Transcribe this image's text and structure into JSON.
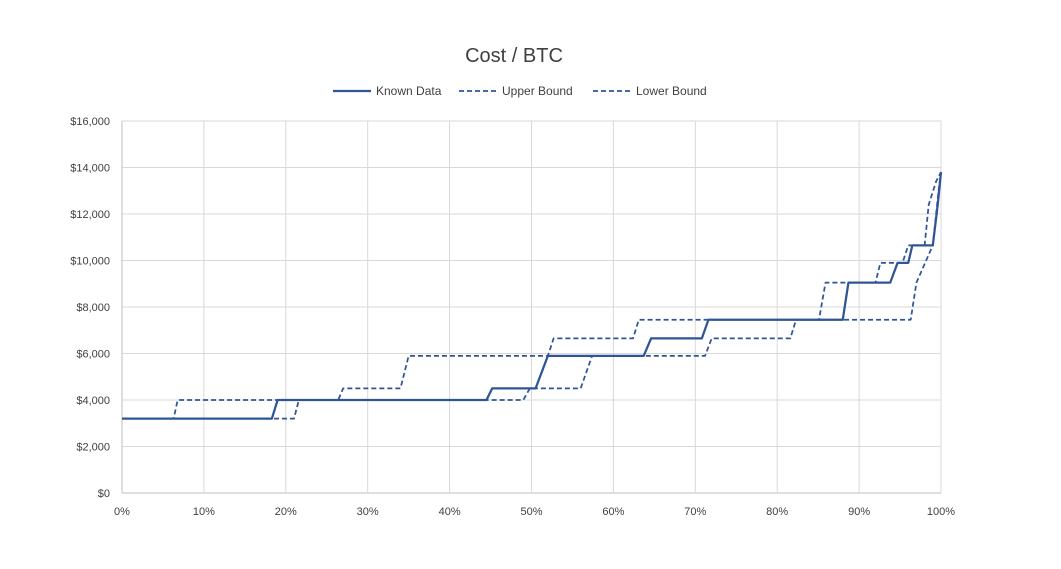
{
  "chart_data": {
    "type": "line",
    "title": "Cost / BTC",
    "xlabel": "",
    "ylabel": "",
    "xlim": [
      0,
      100
    ],
    "ylim": [
      0,
      16000
    ],
    "x_ticks": [
      "0%",
      "10%",
      "20%",
      "30%",
      "40%",
      "50%",
      "60%",
      "70%",
      "80%",
      "90%",
      "100%"
    ],
    "y_ticks": [
      "$0",
      "$2,000",
      "$4,000",
      "$6,000",
      "$8,000",
      "$10,000",
      "$12,000",
      "$14,000",
      "$16,000"
    ],
    "grid": true,
    "legend": "top",
    "colors": {
      "series": "#2f5597"
    },
    "series": [
      {
        "name": "Known Data",
        "style": "solid",
        "points": [
          [
            0,
            3200
          ],
          [
            18.3,
            3200
          ],
          [
            19,
            4000
          ],
          [
            44.5,
            4000
          ],
          [
            45.2,
            4500
          ],
          [
            50.5,
            4500
          ],
          [
            52,
            5900
          ],
          [
            63.7,
            5900
          ],
          [
            64.6,
            6650
          ],
          [
            70.8,
            6650
          ],
          [
            71.6,
            7450
          ],
          [
            88,
            7450
          ],
          [
            88.7,
            9050
          ],
          [
            93.8,
            9050
          ],
          [
            94.7,
            9900
          ],
          [
            96,
            9900
          ],
          [
            96.5,
            10650
          ],
          [
            99,
            10650
          ],
          [
            99.6,
            12400
          ],
          [
            100,
            13800
          ]
        ]
      },
      {
        "name": "Upper Bound",
        "style": "dashed",
        "points": [
          [
            0,
            3200
          ],
          [
            6.3,
            3200
          ],
          [
            6.8,
            4000
          ],
          [
            26.4,
            4000
          ],
          [
            27,
            4500
          ],
          [
            34,
            4500
          ],
          [
            35,
            5900
          ],
          [
            52,
            5900
          ],
          [
            52.7,
            6650
          ],
          [
            62.4,
            6650
          ],
          [
            63.1,
            7450
          ],
          [
            85.1,
            7450
          ],
          [
            85.9,
            9050
          ],
          [
            92,
            9050
          ],
          [
            92.6,
            9900
          ],
          [
            95.3,
            9900
          ],
          [
            96,
            10650
          ],
          [
            98,
            10650
          ],
          [
            98.5,
            12400
          ],
          [
            99.4,
            13400
          ],
          [
            100,
            13800
          ]
        ]
      },
      {
        "name": "Lower Bound",
        "style": "dashed",
        "points": [
          [
            0,
            3200
          ],
          [
            21,
            3200
          ],
          [
            21.6,
            4000
          ],
          [
            49,
            4000
          ],
          [
            49.8,
            4500
          ],
          [
            56,
            4500
          ],
          [
            57.4,
            5900
          ],
          [
            71.2,
            5900
          ],
          [
            72,
            6650
          ],
          [
            81.6,
            6650
          ],
          [
            82.3,
            7450
          ],
          [
            96.3,
            7450
          ],
          [
            97,
            9050
          ],
          [
            99,
            10650
          ],
          [
            99.7,
            13000
          ],
          [
            100,
            13800
          ]
        ]
      }
    ]
  }
}
